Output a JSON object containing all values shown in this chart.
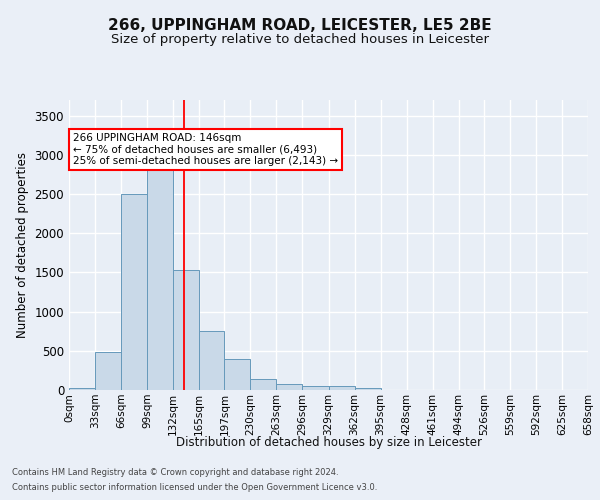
{
  "title1": "266, UPPINGHAM ROAD, LEICESTER, LE5 2BE",
  "title2": "Size of property relative to detached houses in Leicester",
  "xlabel": "Distribution of detached houses by size in Leicester",
  "ylabel": "Number of detached properties",
  "footer1": "Contains HM Land Registry data © Crown copyright and database right 2024.",
  "footer2": "Contains public sector information licensed under the Open Government Licence v3.0.",
  "annotation_line1": "266 UPPINGHAM ROAD: 146sqm",
  "annotation_line2": "← 75% of detached houses are smaller (6,493)",
  "annotation_line3": "25% of semi-detached houses are larger (2,143) →",
  "bar_color": "#c9d9e8",
  "bar_edge_color": "#6699bb",
  "redline_x": 146,
  "bin_edges": [
    0,
    33,
    66,
    99,
    132,
    165,
    197,
    230,
    263,
    296,
    329,
    362,
    395,
    428,
    461,
    494,
    526,
    559,
    592,
    625,
    658
  ],
  "bar_heights": [
    20,
    480,
    2500,
    2820,
    1530,
    750,
    390,
    140,
    75,
    55,
    55,
    20,
    0,
    0,
    0,
    0,
    0,
    0,
    0,
    0
  ],
  "ylim": [
    0,
    3700
  ],
  "yticks": [
    0,
    500,
    1000,
    1500,
    2000,
    2500,
    3000,
    3500
  ],
  "bg_color": "#eaeff7",
  "plot_bg_color": "#e8eef6",
  "grid_color": "#ffffff",
  "title_fontsize": 11,
  "subtitle_fontsize": 9.5
}
